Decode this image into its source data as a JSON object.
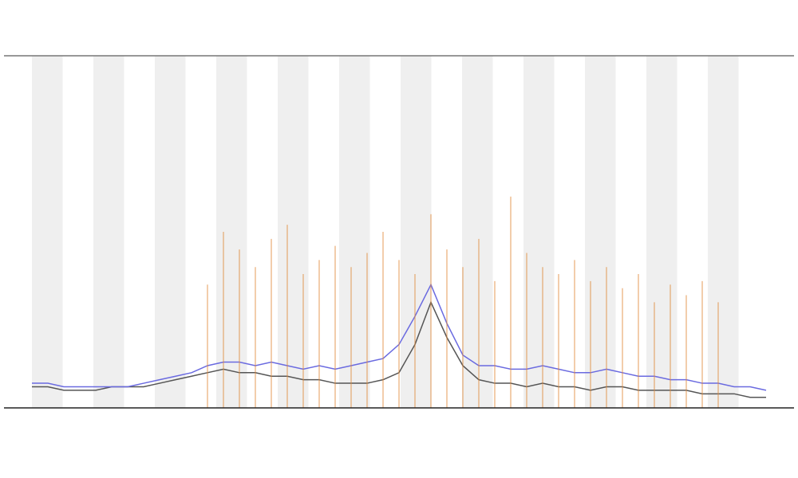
{
  "chart_data": {
    "type": "line",
    "x": [
      0,
      1,
      2,
      3,
      4,
      5,
      6,
      7,
      8,
      9,
      10,
      11,
      12,
      13,
      14,
      15,
      16,
      17,
      18,
      19,
      20,
      21,
      22,
      23,
      24,
      25,
      26,
      27,
      28,
      29,
      30,
      31,
      32,
      33,
      34,
      35,
      36,
      37,
      38,
      39,
      40,
      41,
      42,
      43,
      44,
      45,
      46
    ],
    "xlim": [
      0,
      46
    ],
    "ylim": [
      0,
      100
    ],
    "series": [
      {
        "color": "#555555",
        "values": [
          6,
          6,
          5,
          5,
          5,
          6,
          6,
          6,
          7,
          8,
          9,
          10,
          11,
          10,
          10,
          9,
          9,
          8,
          8,
          7,
          7,
          7,
          8,
          10,
          18,
          30,
          20,
          12,
          8,
          7,
          7,
          6,
          7,
          6,
          6,
          5,
          6,
          6,
          5,
          5,
          5,
          5,
          4,
          4,
          4,
          3,
          3
        ]
      },
      {
        "color": "#6a6ae0",
        "values": [
          7,
          7,
          6,
          6,
          6,
          6,
          6,
          7,
          8,
          9,
          10,
          12,
          13,
          13,
          12,
          13,
          12,
          11,
          12,
          11,
          12,
          13,
          14,
          18,
          26,
          35,
          24,
          15,
          12,
          12,
          11,
          11,
          12,
          11,
          10,
          10,
          11,
          10,
          9,
          9,
          8,
          8,
          7,
          7,
          6,
          6,
          5
        ]
      },
      {
        "color": "#e08a3a",
        "values": [
          null,
          null,
          null,
          null,
          null,
          null,
          null,
          null,
          null,
          null,
          null,
          35,
          50,
          45,
          40,
          48,
          52,
          38,
          42,
          46,
          40,
          44,
          50,
          42,
          38,
          55,
          45,
          40,
          48,
          36,
          60,
          44,
          40,
          38,
          42,
          36,
          40,
          34,
          38,
          30,
          35,
          32,
          36,
          30,
          null,
          null,
          null
        ]
      }
    ]
  }
}
